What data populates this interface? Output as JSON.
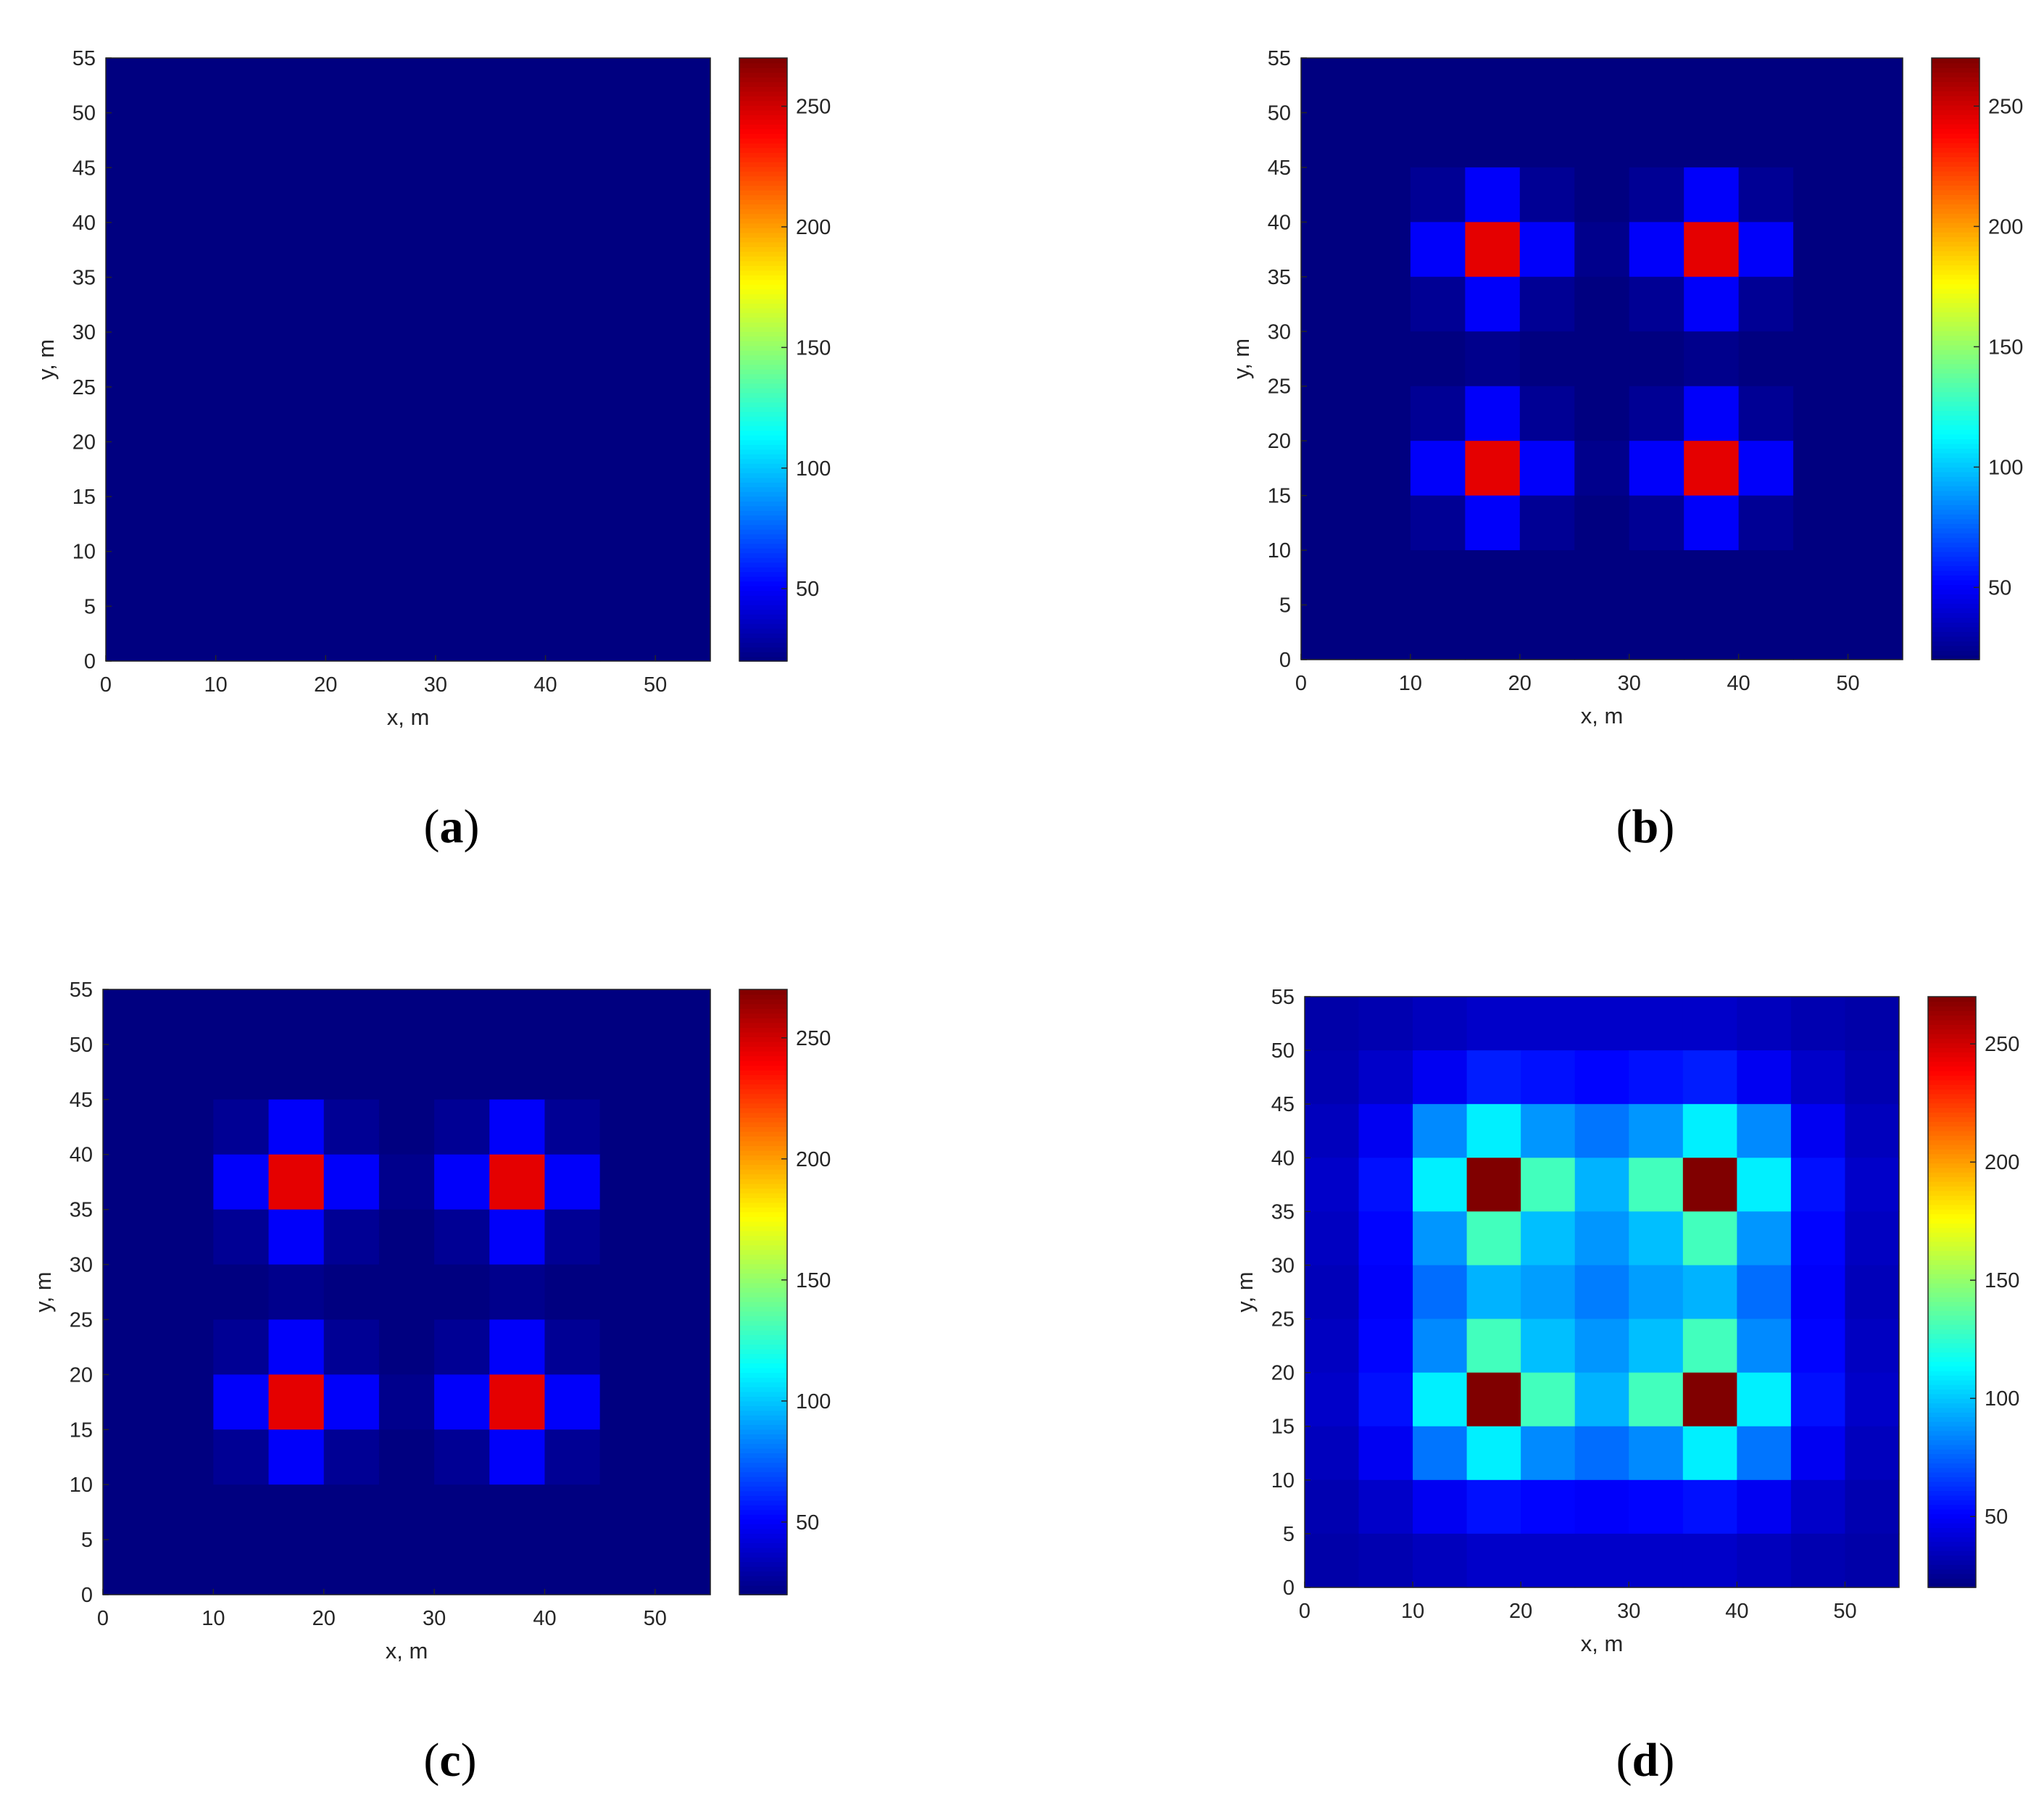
{
  "chart_data": [
    {
      "type": "heatmap",
      "caption_letter": "a",
      "xlabel": "x, m",
      "ylabel": "y, m",
      "xlim": [
        0,
        55
      ],
      "ylim": [
        0,
        55
      ],
      "x_ticks": [
        "0",
        "10",
        "20",
        "30",
        "40",
        "50"
      ],
      "y_ticks": [
        "0",
        "5",
        "10",
        "15",
        "20",
        "25",
        "30",
        "35",
        "40",
        "45",
        "50",
        "55"
      ],
      "cell_size": 5,
      "colormap": "jet",
      "clim": [
        20,
        270
      ],
      "colorbar_ticks": [
        "50",
        "100",
        "150",
        "200",
        "250"
      ],
      "values": [
        [
          20,
          20,
          20,
          20,
          20,
          20,
          20,
          20,
          20,
          20,
          20
        ],
        [
          20,
          20,
          20,
          20,
          20,
          20,
          20,
          20,
          20,
          20,
          20
        ],
        [
          20,
          20,
          20,
          20,
          20,
          20,
          20,
          20,
          20,
          20,
          20
        ],
        [
          20,
          20,
          20,
          20,
          20,
          20,
          20,
          20,
          20,
          20,
          20
        ],
        [
          20,
          20,
          20,
          20,
          20,
          20,
          20,
          20,
          20,
          20,
          20
        ],
        [
          20,
          20,
          20,
          20,
          20,
          20,
          20,
          20,
          20,
          20,
          20
        ],
        [
          20,
          20,
          20,
          20,
          20,
          20,
          20,
          20,
          20,
          20,
          20
        ],
        [
          20,
          20,
          20,
          20,
          20,
          20,
          20,
          20,
          20,
          20,
          20
        ],
        [
          20,
          20,
          20,
          20,
          20,
          20,
          20,
          20,
          20,
          20,
          20
        ],
        [
          20,
          20,
          20,
          20,
          20,
          20,
          20,
          20,
          20,
          20,
          20
        ],
        [
          20,
          20,
          20,
          20,
          20,
          20,
          20,
          20,
          20,
          20,
          20
        ]
      ]
    },
    {
      "type": "heatmap",
      "caption_letter": "b",
      "xlabel": "x, m",
      "ylabel": "y, m",
      "xlim": [
        0,
        55
      ],
      "ylim": [
        0,
        55
      ],
      "x_ticks": [
        "0",
        "10",
        "20",
        "30",
        "40",
        "50"
      ],
      "y_ticks": [
        "0",
        "5",
        "10",
        "15",
        "20",
        "25",
        "30",
        "35",
        "40",
        "45",
        "50",
        "55"
      ],
      "cell_size": 5,
      "colormap": "jet",
      "clim": [
        20,
        270
      ],
      "colorbar_ticks": [
        "50",
        "100",
        "150",
        "200",
        "250"
      ],
      "values": [
        [
          20,
          20,
          20,
          20,
          20,
          20,
          20,
          20,
          20,
          20,
          20
        ],
        [
          20,
          20,
          20,
          20,
          20,
          20,
          20,
          20,
          20,
          20,
          20
        ],
        [
          20,
          20,
          25,
          50,
          25,
          20,
          25,
          50,
          25,
          20,
          20
        ],
        [
          20,
          20,
          50,
          245,
          50,
          23,
          50,
          245,
          50,
          20,
          20
        ],
        [
          20,
          20,
          25,
          50,
          25,
          20,
          25,
          50,
          25,
          20,
          20
        ],
        [
          20,
          20,
          20,
          23,
          20,
          20,
          20,
          23,
          20,
          20,
          20
        ],
        [
          20,
          20,
          25,
          50,
          25,
          20,
          25,
          50,
          25,
          20,
          20
        ],
        [
          20,
          20,
          50,
          245,
          50,
          23,
          50,
          245,
          50,
          20,
          20
        ],
        [
          20,
          20,
          25,
          50,
          25,
          20,
          25,
          50,
          25,
          20,
          20
        ],
        [
          20,
          20,
          20,
          20,
          20,
          20,
          20,
          20,
          20,
          20,
          20
        ],
        [
          20,
          20,
          20,
          20,
          20,
          20,
          20,
          20,
          20,
          20,
          20
        ]
      ]
    },
    {
      "type": "heatmap",
      "caption_letter": "c",
      "xlabel": "x, m",
      "ylabel": "y, m",
      "xlim": [
        0,
        55
      ],
      "ylim": [
        0,
        55
      ],
      "x_ticks": [
        "0",
        "10",
        "20",
        "30",
        "40",
        "50"
      ],
      "y_ticks": [
        "0",
        "5",
        "10",
        "15",
        "20",
        "25",
        "30",
        "35",
        "40",
        "45",
        "50",
        "55"
      ],
      "cell_size": 5,
      "colormap": "jet",
      "clim": [
        20,
        270
      ],
      "colorbar_ticks": [
        "50",
        "100",
        "150",
        "200",
        "250"
      ],
      "values": [
        [
          20,
          20,
          20,
          20,
          20,
          20,
          20,
          20,
          20,
          20,
          20
        ],
        [
          20,
          20,
          20,
          20,
          20,
          20,
          20,
          20,
          20,
          20,
          20
        ],
        [
          20,
          20,
          25,
          50,
          25,
          20,
          25,
          50,
          25,
          20,
          20
        ],
        [
          20,
          20,
          50,
          245,
          50,
          23,
          50,
          245,
          50,
          20,
          20
        ],
        [
          20,
          20,
          25,
          50,
          25,
          20,
          25,
          50,
          25,
          20,
          20
        ],
        [
          20,
          20,
          20,
          23,
          20,
          20,
          20,
          23,
          20,
          20,
          20
        ],
        [
          20,
          20,
          25,
          50,
          25,
          20,
          25,
          50,
          25,
          20,
          20
        ],
        [
          20,
          20,
          50,
          245,
          50,
          23,
          50,
          245,
          50,
          20,
          20
        ],
        [
          20,
          20,
          25,
          50,
          25,
          20,
          25,
          50,
          25,
          20,
          20
        ],
        [
          20,
          20,
          20,
          20,
          20,
          20,
          20,
          20,
          20,
          20,
          20
        ],
        [
          20,
          20,
          20,
          20,
          20,
          20,
          20,
          20,
          20,
          20,
          20
        ]
      ]
    },
    {
      "type": "heatmap",
      "caption_letter": "d",
      "xlabel": "x, m",
      "ylabel": "y, m",
      "xlim": [
        0,
        55
      ],
      "ylim": [
        0,
        55
      ],
      "x_ticks": [
        "0",
        "10",
        "20",
        "30",
        "40",
        "50"
      ],
      "y_ticks": [
        "0",
        "5",
        "10",
        "15",
        "20",
        "25",
        "30",
        "35",
        "40",
        "45",
        "50",
        "55"
      ],
      "cell_size": 5,
      "colormap": "jet",
      "clim": [
        20,
        270
      ],
      "colorbar_ticks": [
        "50",
        "100",
        "150",
        "200",
        "250"
      ],
      "values": [
        [
          30,
          32,
          35,
          38,
          38,
          38,
          38,
          38,
          35,
          32,
          30
        ],
        [
          32,
          38,
          48,
          58,
          55,
          52,
          55,
          58,
          48,
          38,
          32
        ],
        [
          35,
          48,
          85,
          110,
          88,
          80,
          88,
          110,
          85,
          48,
          35
        ],
        [
          38,
          55,
          110,
          270,
          130,
          95,
          130,
          270,
          110,
          55,
          38
        ],
        [
          36,
          52,
          88,
          130,
          98,
          88,
          98,
          130,
          88,
          52,
          36
        ],
        [
          34,
          50,
          78,
          95,
          90,
          82,
          90,
          95,
          78,
          50,
          34
        ],
        [
          36,
          52,
          85,
          130,
          98,
          88,
          98,
          130,
          85,
          52,
          36
        ],
        [
          38,
          55,
          110,
          270,
          130,
          95,
          130,
          270,
          110,
          55,
          38
        ],
        [
          35,
          48,
          80,
          110,
          85,
          78,
          85,
          110,
          80,
          48,
          35
        ],
        [
          32,
          38,
          48,
          55,
          52,
          50,
          52,
          55,
          48,
          38,
          32
        ],
        [
          30,
          32,
          35,
          38,
          38,
          38,
          38,
          38,
          35,
          32,
          30
        ]
      ]
    }
  ]
}
